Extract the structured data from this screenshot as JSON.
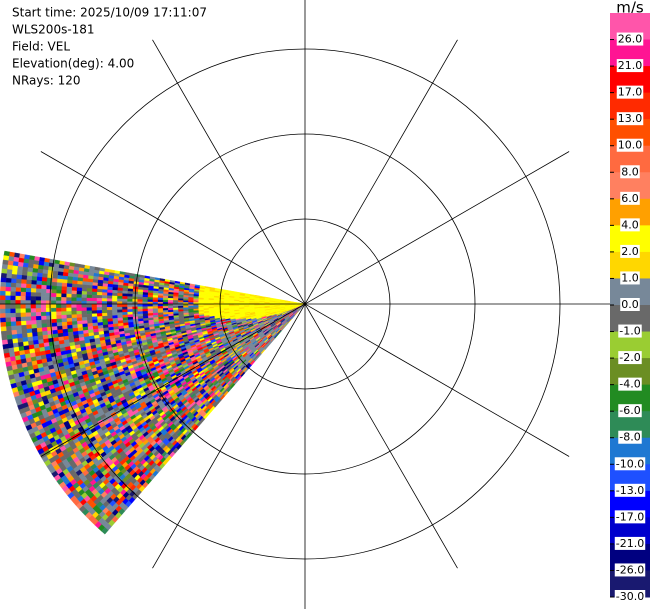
{
  "chart_data": {
    "type": "ppi",
    "info": [
      "Start time: 2025/10/09 17:11:07",
      "WLS200s-181",
      "Field: VEL",
      "Elevation(deg): 4.00",
      "NRays: 120"
    ],
    "colorbar": {
      "unit": "m/s",
      "colors": [
        "#ff55aa",
        "#ff1493",
        "#ff0000",
        "#ff2a00",
        "#ff5000",
        "#ff6a40",
        "#ff8060",
        "#ffa000",
        "#ffff00",
        "#ffd700",
        "#778899",
        "#696969",
        "#9acd32",
        "#6b8e23",
        "#228b22",
        "#2e8b57",
        "#1e78d2",
        "#1e50ff",
        "#0000ff",
        "#0000cd",
        "#000080",
        "#191970"
      ],
      "ticks": [
        {
          "value": 26,
          "label": "26.0"
        },
        {
          "value": 21,
          "label": "21.0"
        },
        {
          "value": 17,
          "label": "17.0"
        },
        {
          "value": 13,
          "label": "13.0"
        },
        {
          "value": 10,
          "label": "10.0"
        },
        {
          "value": 8,
          "label": "8.0"
        },
        {
          "value": 6,
          "label": "6.0"
        },
        {
          "value": 4,
          "label": "4.0"
        },
        {
          "value": 2,
          "label": "2.0"
        },
        {
          "value": 1,
          "label": "1.0"
        },
        {
          "value": 0,
          "label": "0.0"
        },
        {
          "value": -1,
          "label": "-1.0"
        },
        {
          "value": -2,
          "label": "-2.0"
        },
        {
          "value": -4,
          "label": "-4.0"
        },
        {
          "value": -6,
          "label": "-6.0"
        },
        {
          "value": -8,
          "label": "-8.0"
        },
        {
          "value": -10,
          "label": "-10.0"
        },
        {
          "value": -13,
          "label": "-13.0"
        },
        {
          "value": -17,
          "label": "-17.0"
        },
        {
          "value": -21,
          "label": "-21.0"
        },
        {
          "value": -26,
          "label": "-26.0"
        },
        {
          "value": -30,
          "label": "-30.0"
        }
      ]
    }
  }
}
